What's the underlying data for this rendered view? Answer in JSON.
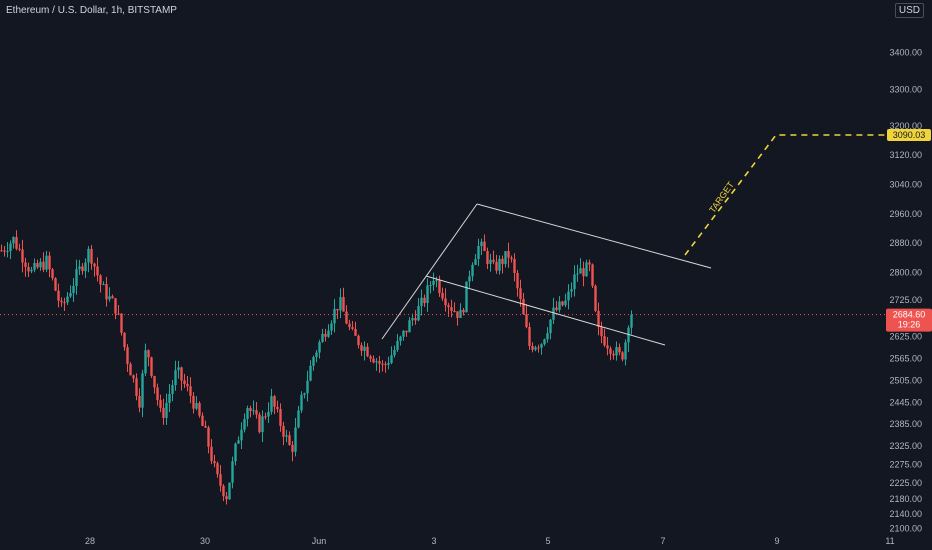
{
  "header": {
    "title": "Ethereum / U.S. Dollar, 1h, BITSTAMP",
    "currency": "USD"
  },
  "price_label": {
    "value": "2684.60",
    "countdown": "19:26"
  },
  "target_label": {
    "value": "3090.03",
    "annotation": "TARGET"
  },
  "colors": {
    "background": "#131722",
    "up": "#26a69a",
    "down": "#ef5350",
    "target": "#f0d43a",
    "channel": "#d8d8d8",
    "price_line": "#ef5350"
  },
  "chart_data": {
    "type": "candlestick",
    "title": "Ethereum / U.S. Dollar, 1h, BITSTAMP",
    "interval": "1h",
    "exchange": "BITSTAMP",
    "currency": "USD",
    "y_ticks": [
      3400,
      3300,
      3200,
      3120,
      3040,
      2960,
      2880,
      2800,
      2725,
      2625,
      2565,
      2505,
      2445,
      2385,
      2325,
      2275,
      2225,
      2180,
      2140,
      2100
    ],
    "ylim": [
      2085,
      3525
    ],
    "x_ticks": [
      "28",
      "30",
      "Jun",
      "3",
      "5",
      "7",
      "9",
      "11"
    ],
    "last_price": 2684.6,
    "target_price": 3090.03,
    "grid": false,
    "series_keypoints": [
      {
        "x": 0,
        "y": 2860
      },
      {
        "x": 12,
        "y": 2890
      },
      {
        "x": 30,
        "y": 2800
      },
      {
        "x": 45,
        "y": 2830
      },
      {
        "x": 60,
        "y": 2700
      },
      {
        "x": 75,
        "y": 2790
      },
      {
        "x": 88,
        "y": 2860
      },
      {
        "x": 100,
        "y": 2760
      },
      {
        "x": 115,
        "y": 2700
      },
      {
        "x": 125,
        "y": 2570
      },
      {
        "x": 138,
        "y": 2450
      },
      {
        "x": 145,
        "y": 2600
      },
      {
        "x": 160,
        "y": 2400
      },
      {
        "x": 175,
        "y": 2530
      },
      {
        "x": 190,
        "y": 2460
      },
      {
        "x": 205,
        "y": 2350
      },
      {
        "x": 215,
        "y": 2240
      },
      {
        "x": 225,
        "y": 2190
      },
      {
        "x": 235,
        "y": 2330
      },
      {
        "x": 245,
        "y": 2440
      },
      {
        "x": 258,
        "y": 2380
      },
      {
        "x": 270,
        "y": 2450
      },
      {
        "x": 280,
        "y": 2380
      },
      {
        "x": 290,
        "y": 2310
      },
      {
        "x": 300,
        "y": 2450
      },
      {
        "x": 312,
        "y": 2570
      },
      {
        "x": 325,
        "y": 2650
      },
      {
        "x": 338,
        "y": 2720
      },
      {
        "x": 350,
        "y": 2630
      },
      {
        "x": 365,
        "y": 2590
      },
      {
        "x": 382,
        "y": 2540
      },
      {
        "x": 398,
        "y": 2610
      },
      {
        "x": 412,
        "y": 2680
      },
      {
        "x": 422,
        "y": 2720
      },
      {
        "x": 432,
        "y": 2790
      },
      {
        "x": 448,
        "y": 2710
      },
      {
        "x": 460,
        "y": 2680
      },
      {
        "x": 470,
        "y": 2830
      },
      {
        "x": 478,
        "y": 2875
      },
      {
        "x": 492,
        "y": 2810
      },
      {
        "x": 508,
        "y": 2850
      },
      {
        "x": 518,
        "y": 2730
      },
      {
        "x": 528,
        "y": 2600
      },
      {
        "x": 540,
        "y": 2610
      },
      {
        "x": 552,
        "y": 2690
      },
      {
        "x": 565,
        "y": 2720
      },
      {
        "x": 575,
        "y": 2800
      },
      {
        "x": 588,
        "y": 2810
      },
      {
        "x": 596,
        "y": 2640
      },
      {
        "x": 608,
        "y": 2600
      },
      {
        "x": 620,
        "y": 2565
      },
      {
        "x": 630,
        "y": 2684.6
      }
    ],
    "annotations": [
      "TARGET"
    ]
  }
}
